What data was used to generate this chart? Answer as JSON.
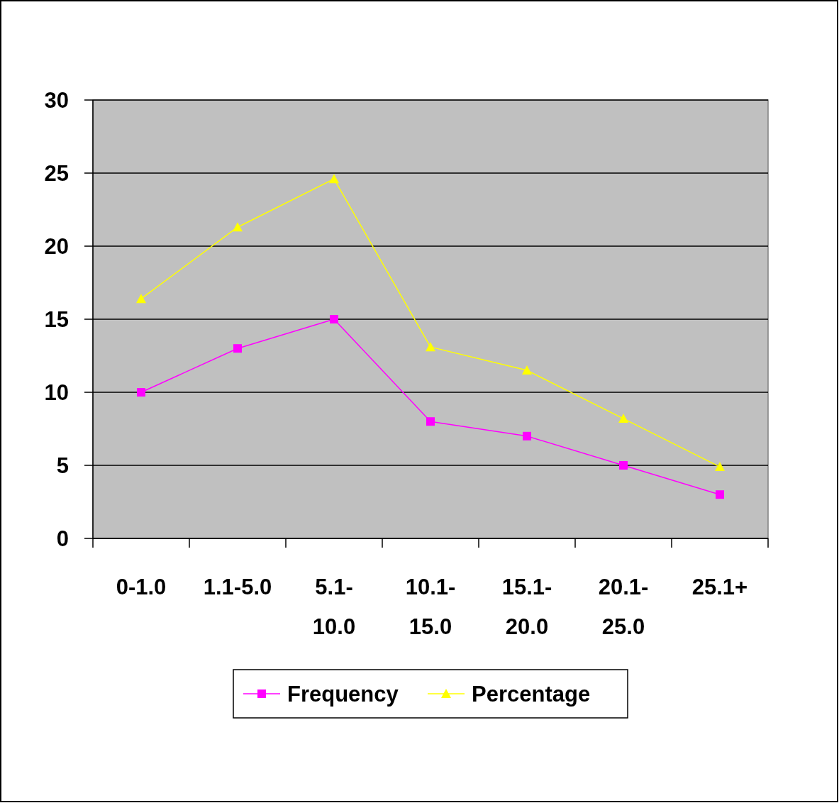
{
  "chart_data": {
    "type": "line",
    "categories": [
      "0-1.0",
      "1.1-5.0",
      "5.1-10.0",
      "10.1-15.0",
      "15.1-20.0",
      "20.1-25.0",
      "25.1+"
    ],
    "series": [
      {
        "name": "Frequency",
        "color": "#ff00ff",
        "marker": "square",
        "values": [
          10,
          13,
          15,
          8,
          7,
          5,
          3
        ]
      },
      {
        "name": "Percentage",
        "color": "#ffff00",
        "marker": "triangle",
        "values": [
          16.4,
          21.3,
          24.6,
          13.1,
          11.5,
          8.2,
          4.9
        ]
      }
    ],
    "ylim": [
      0,
      30
    ],
    "yticks": [
      0,
      5,
      10,
      15,
      20,
      25,
      30
    ],
    "grid": "y",
    "legend": "bottom"
  }
}
